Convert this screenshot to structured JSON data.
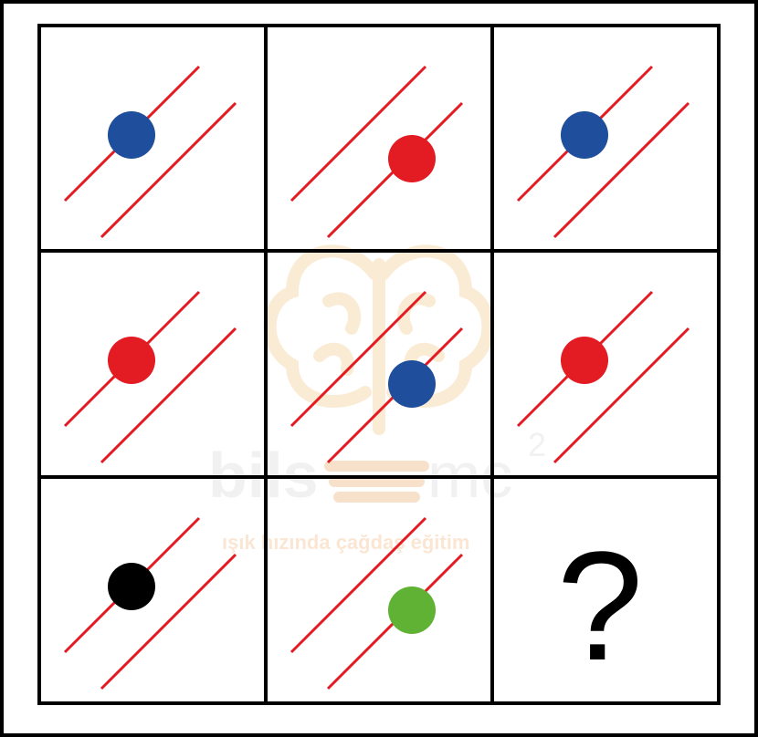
{
  "puzzle": {
    "colors": {
      "line": "#e31b23",
      "blue": "#1f4e9c",
      "red": "#e31b23",
      "black": "#000000",
      "green": "#5fb233",
      "frame": "#000000"
    },
    "cells": [
      {
        "row": 0,
        "col": 0,
        "dot_color": "#1f4e9c",
        "dot_on": "upper-line"
      },
      {
        "row": 0,
        "col": 1,
        "dot_color": "#e31b23",
        "dot_on": "lower-line"
      },
      {
        "row": 0,
        "col": 2,
        "dot_color": "#1f4e9c",
        "dot_on": "upper-line"
      },
      {
        "row": 1,
        "col": 0,
        "dot_color": "#e31b23",
        "dot_on": "upper-line"
      },
      {
        "row": 1,
        "col": 1,
        "dot_color": "#1f4e9c",
        "dot_on": "lower-line"
      },
      {
        "row": 1,
        "col": 2,
        "dot_color": "#e31b23",
        "dot_on": "upper-line"
      },
      {
        "row": 2,
        "col": 0,
        "dot_color": "#000000",
        "dot_on": "upper-line"
      },
      {
        "row": 2,
        "col": 1,
        "dot_color": "#5fb233",
        "dot_on": "lower-line"
      },
      {
        "row": 2,
        "col": 2,
        "question": "?"
      }
    ]
  },
  "watermark": {
    "brand": "bils",
    "brand_suffix": "mc",
    "superscript": "2",
    "tagline": "ışık hızında çağdaş eğitim",
    "icon": "brain-lightbulb-icon"
  }
}
